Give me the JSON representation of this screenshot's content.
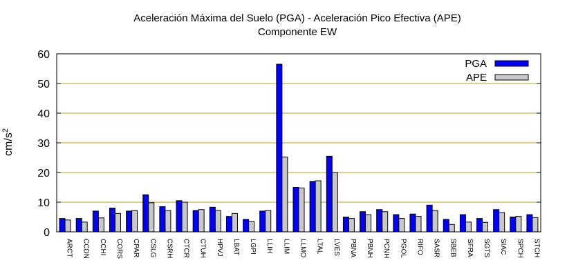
{
  "chart_data": {
    "type": "bar",
    "title": "Aceleración Máxima del Suelo (PGA) -  Aceleración Pico Efectiva (APE)",
    "subtitle": "Componente EW",
    "ylabel": "cm/s",
    "ylabel_sup": "2",
    "ylim": [
      0,
      60
    ],
    "yticks": [
      0,
      10,
      20,
      30,
      40,
      50,
      60
    ],
    "legend_position": "top-right",
    "grid": "horizontal",
    "categories": [
      "ARCT",
      "CCDN",
      "CCHI",
      "CORS",
      "CPAR",
      "CSLG",
      "CSRH",
      "CTCR",
      "CTUH",
      "HPVJ",
      "LBAT",
      "LGPI",
      "LLIH",
      "LLIM",
      "LLMO",
      "LTAL",
      "LVES",
      "PBNA",
      "PBNH",
      "PCNH",
      "PGOL",
      "RIFO",
      "SASR",
      "SBEB",
      "SFRA",
      "SGTS",
      "SIAC",
      "SPCH",
      "STCH"
    ],
    "series": [
      {
        "name": "PGA",
        "color": "#0000ff",
        "values": [
          4.5,
          4.5,
          7.0,
          8.0,
          7.0,
          12.5,
          8.5,
          10.5,
          7.2,
          8.3,
          5.2,
          4.2,
          7.0,
          56.5,
          15.0,
          17.0,
          25.5,
          5.0,
          6.8,
          7.5,
          5.8,
          6.0,
          9.0,
          4.2,
          5.8,
          4.5,
          7.5,
          5.0,
          5.8
        ]
      },
      {
        "name": "APE",
        "color": "#c8c8c8",
        "values": [
          4.0,
          3.3,
          4.7,
          6.2,
          7.2,
          9.8,
          7.2,
          10.0,
          7.5,
          7.2,
          6.2,
          3.5,
          7.2,
          25.2,
          14.8,
          17.2,
          20.0,
          4.5,
          5.8,
          6.8,
          4.5,
          5.2,
          7.2,
          2.5,
          3.3,
          3.2,
          6.5,
          5.2,
          4.8
        ]
      }
    ]
  }
}
